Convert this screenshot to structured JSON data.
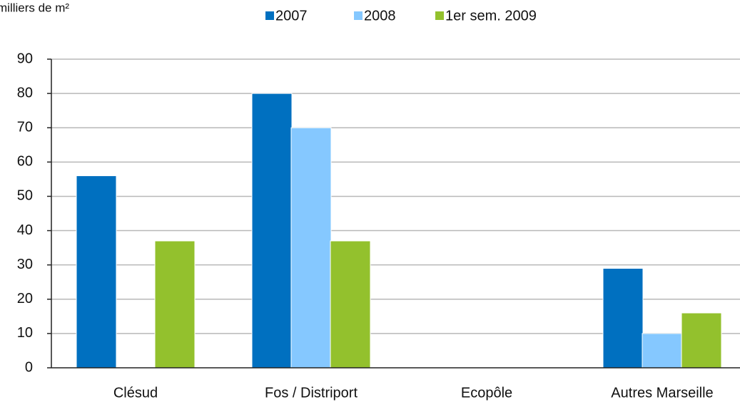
{
  "chart_data": {
    "type": "bar",
    "y_label": "milliers de m²",
    "categories": [
      "Clésud",
      "Fos / Distriport",
      "Ecopôle",
      "Autres Marseille"
    ],
    "series": [
      {
        "name": "2007",
        "color": "#0070c0",
        "values": [
          56,
          80,
          0,
          29
        ]
      },
      {
        "name": "2008",
        "color": "#85c8ff",
        "values": [
          0,
          70,
          0,
          10
        ]
      },
      {
        "name": "1er sem. 2009",
        "color": "#93c12d",
        "values": [
          37,
          37,
          0,
          16
        ]
      }
    ],
    "ylim": [
      0,
      90
    ],
    "yticks": [
      0,
      10,
      20,
      30,
      40,
      50,
      60,
      70,
      80,
      90
    ],
    "grid": true,
    "legend": "top"
  }
}
